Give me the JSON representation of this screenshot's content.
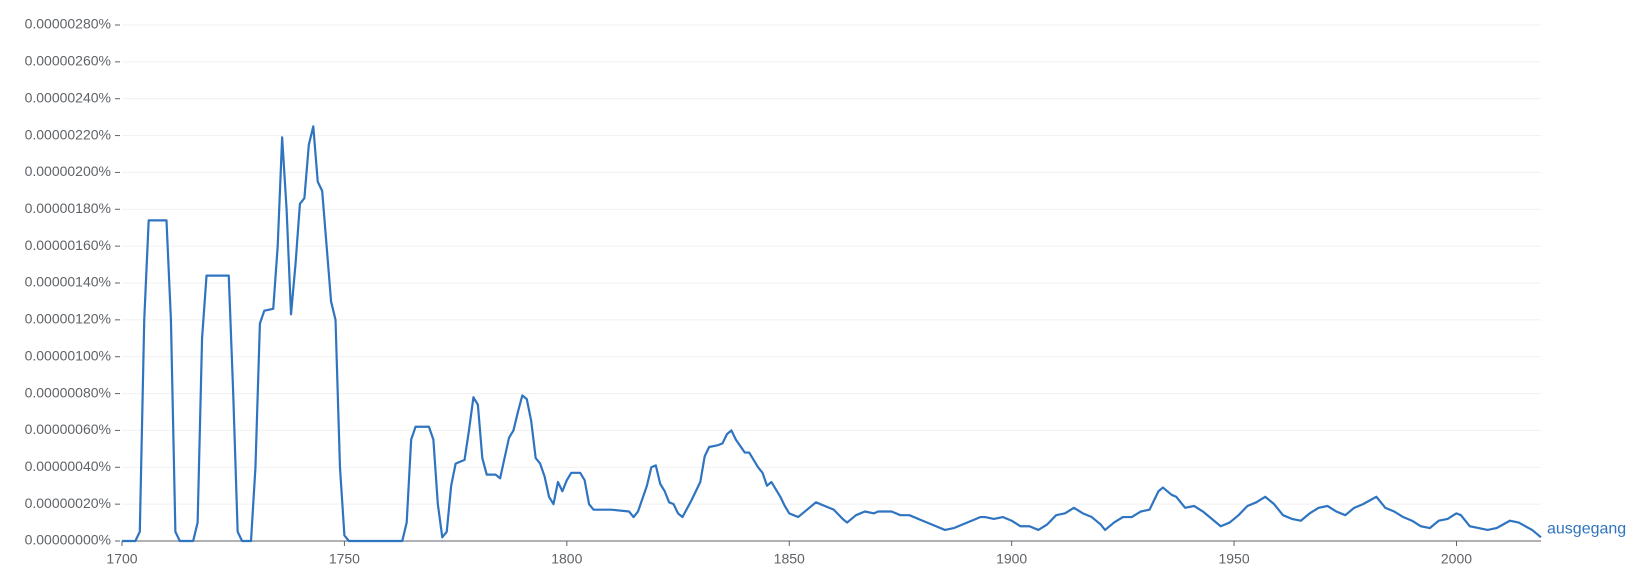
{
  "chart_data": {
    "type": "line",
    "x": [
      1700,
      1703,
      1704,
      1705,
      1706,
      1710,
      1711,
      1712,
      1713,
      1716,
      1717,
      1718,
      1719,
      1724,
      1725,
      1726,
      1727,
      1729,
      1730,
      1731,
      1732,
      1734,
      1735,
      1736,
      1737,
      1738,
      1739,
      1740,
      1741,
      1742,
      1743,
      1744,
      1745,
      1746,
      1747,
      1748,
      1749,
      1750,
      1751,
      1763,
      1764,
      1765,
      1766,
      1769,
      1770,
      1771,
      1772,
      1773,
      1774,
      1775,
      1777,
      1778,
      1779,
      1780,
      1781,
      1782,
      1784,
      1785,
      1786,
      1787,
      1788,
      1789,
      1790,
      1791,
      1792,
      1793,
      1794,
      1795,
      1796,
      1797,
      1798,
      1799,
      1800,
      1801,
      1803,
      1804,
      1805,
      1806,
      1810,
      1814,
      1815,
      1816,
      1817,
      1818,
      1819,
      1820,
      1821,
      1822,
      1823,
      1824,
      1825,
      1826,
      1828,
      1830,
      1831,
      1832,
      1834,
      1835,
      1836,
      1837,
      1838,
      1840,
      1841,
      1842,
      1843,
      1844,
      1845,
      1846,
      1847,
      1848,
      1849,
      1850,
      1851,
      1852,
      1854,
      1856,
      1858,
      1860,
      1862,
      1863,
      1865,
      1867,
      1869,
      1870,
      1873,
      1875,
      1877,
      1880,
      1883,
      1885,
      1887,
      1889,
      1891,
      1893,
      1894,
      1896,
      1898,
      1900,
      1902,
      1904,
      1906,
      1908,
      1910,
      1912,
      1914,
      1916,
      1918,
      1920,
      1921,
      1923,
      1925,
      1927,
      1929,
      1931,
      1933,
      1934,
      1936,
      1937,
      1939,
      1941,
      1943,
      1945,
      1947,
      1949,
      1951,
      1953,
      1955,
      1957,
      1959,
      1961,
      1963,
      1965,
      1967,
      1969,
      1971,
      1973,
      1975,
      1977,
      1979,
      1982,
      1984,
      1986,
      1988,
      1990,
      1992,
      1994,
      1996,
      1998,
      2000,
      2001,
      2003,
      2005,
      2007,
      2009,
      2012,
      2014,
      2017,
      2019
    ],
    "series": [
      {
        "name": "ausgegang",
        "color": "#2f74c0",
        "values": [
          0,
          0,
          5e-08,
          1.2e-06,
          1.74e-06,
          1.74e-06,
          1.2e-06,
          5e-08,
          0,
          0,
          1e-07,
          1.1e-06,
          1.44e-06,
          1.44e-06,
          8e-07,
          5e-08,
          0,
          0,
          4e-07,
          1.18e-06,
          1.25e-06,
          1.26e-06,
          1.6e-06,
          2.19e-06,
          1.8e-06,
          1.23e-06,
          1.5e-06,
          1.83e-06,
          1.86e-06,
          2.15e-06,
          2.25e-06,
          1.95e-06,
          1.9e-06,
          1.6e-06,
          1.3e-06,
          1.2e-06,
          4e-07,
          3e-08,
          0,
          0,
          1e-07,
          5.5e-07,
          6.2e-07,
          6.2e-07,
          5.5e-07,
          2e-07,
          2e-08,
          5e-08,
          3e-07,
          4.2e-07,
          4.4e-07,
          6e-07,
          7.8e-07,
          7.4e-07,
          4.5e-07,
          3.6e-07,
          3.6e-07,
          3.4e-07,
          4.5e-07,
          5.6e-07,
          6e-07,
          7e-07,
          7.9e-07,
          7.7e-07,
          6.5e-07,
          4.5e-07,
          4.2e-07,
          3.5e-07,
          2.4e-07,
          2e-07,
          3.2e-07,
          2.7e-07,
          3.3e-07,
          3.7e-07,
          3.7e-07,
          3.3e-07,
          2e-07,
          1.7e-07,
          1.7e-07,
          1.6e-07,
          1.3e-07,
          1.6e-07,
          2.3e-07,
          3e-07,
          4e-07,
          4.1e-07,
          3.1e-07,
          2.7e-07,
          2.1e-07,
          2e-07,
          1.5e-07,
          1.3e-07,
          2.2e-07,
          3.2e-07,
          4.6e-07,
          5.1e-07,
          5.2e-07,
          5.3e-07,
          5.8e-07,
          6e-07,
          5.5e-07,
          4.8e-07,
          4.8e-07,
          4.4e-07,
          4e-07,
          3.7e-07,
          3e-07,
          3.2e-07,
          2.8e-07,
          2.4e-07,
          1.9e-07,
          1.5e-07,
          1.4e-07,
          1.3e-07,
          1.7e-07,
          2.1e-07,
          1.9e-07,
          1.7e-07,
          1.2e-07,
          1e-07,
          1.4e-07,
          1.6e-07,
          1.5e-07,
          1.6e-07,
          1.6e-07,
          1.4e-07,
          1.4e-07,
          1.1e-07,
          8e-08,
          6e-08,
          7e-08,
          9e-08,
          1.1e-07,
          1.3e-07,
          1.3e-07,
          1.2e-07,
          1.3e-07,
          1.1e-07,
          8e-08,
          8e-08,
          6e-08,
          9e-08,
          1.4e-07,
          1.5e-07,
          1.8e-07,
          1.5e-07,
          1.3e-07,
          9e-08,
          6e-08,
          1e-07,
          1.3e-07,
          1.3e-07,
          1.6e-07,
          1.7e-07,
          2.7e-07,
          2.9e-07,
          2.5e-07,
          2.4e-07,
          1.8e-07,
          1.9e-07,
          1.6e-07,
          1.2e-07,
          8e-08,
          1e-07,
          1.4e-07,
          1.9e-07,
          2.1e-07,
          2.4e-07,
          2e-07,
          1.4e-07,
          1.2e-07,
          1.1e-07,
          1.5e-07,
          1.8e-07,
          1.9e-07,
          1.6e-07,
          1.4e-07,
          1.8e-07,
          2e-07,
          2.4e-07,
          1.8e-07,
          1.6e-07,
          1.3e-07,
          1.1e-07,
          8e-08,
          7e-08,
          1.1e-07,
          1.2e-07,
          1.5e-07,
          1.4e-07,
          8e-08,
          7e-08,
          6e-08,
          7e-08,
          1.1e-07,
          1e-07,
          6e-08,
          2e-08
        ]
      }
    ],
    "xlim": [
      1700,
      2019
    ],
    "xticks": [
      1700,
      1750,
      1800,
      1850,
      1900,
      1950,
      2000
    ],
    "ylim": [
      0,
      2.8e-06
    ],
    "yticks": [
      {
        "value": 0,
        "label": "0.00000000%"
      },
      {
        "value": 2e-07,
        "label": "0.00000020%"
      },
      {
        "value": 4e-07,
        "label": "0.00000040%"
      },
      {
        "value": 6e-07,
        "label": "0.00000060%"
      },
      {
        "value": 8e-07,
        "label": "0.00000080%"
      },
      {
        "value": 1e-06,
        "label": "0.00000100%"
      },
      {
        "value": 1.2e-06,
        "label": "0.00000120%"
      },
      {
        "value": 1.4e-06,
        "label": "0.00000140%"
      },
      {
        "value": 1.6e-06,
        "label": "0.00000160%"
      },
      {
        "value": 1.8e-06,
        "label": "0.00000180%"
      },
      {
        "value": 2e-06,
        "label": "0.00000200%"
      },
      {
        "value": 2.2e-06,
        "label": "0.00000220%"
      },
      {
        "value": 2.4e-06,
        "label": "0.00000240%"
      },
      {
        "value": 2.6e-06,
        "label": "0.00000260%"
      },
      {
        "value": 2.8e-06,
        "label": "0.00000280%"
      }
    ],
    "grid": true
  }
}
